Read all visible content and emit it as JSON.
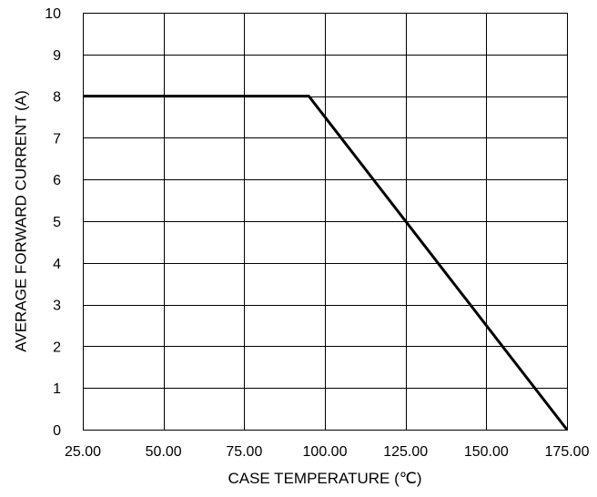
{
  "chart_data": {
    "type": "line",
    "title": "",
    "xlabel": "CASE TEMPERATURE (℃)",
    "ylabel": "AVERAGE FORWARD CURRENT (A)",
    "xlim": [
      25,
      175
    ],
    "ylim": [
      0,
      10
    ],
    "grid": true,
    "x_ticks": [
      25,
      50,
      75,
      100,
      125,
      150,
      175
    ],
    "x_tick_labels": [
      "25.00",
      "50.00",
      "75.00",
      "100.00",
      "125.00",
      "150.00",
      "175.00"
    ],
    "y_ticks": [
      0,
      1,
      2,
      3,
      4,
      5,
      6,
      7,
      8,
      9,
      10
    ],
    "y_tick_labels": [
      "0",
      "1",
      "2",
      "3",
      "4",
      "5",
      "6",
      "7",
      "8",
      "9",
      "10"
    ],
    "series": [
      {
        "color": "#000000",
        "x": [
          25,
          95,
          175
        ],
        "y": [
          8,
          8,
          0
        ]
      }
    ]
  }
}
